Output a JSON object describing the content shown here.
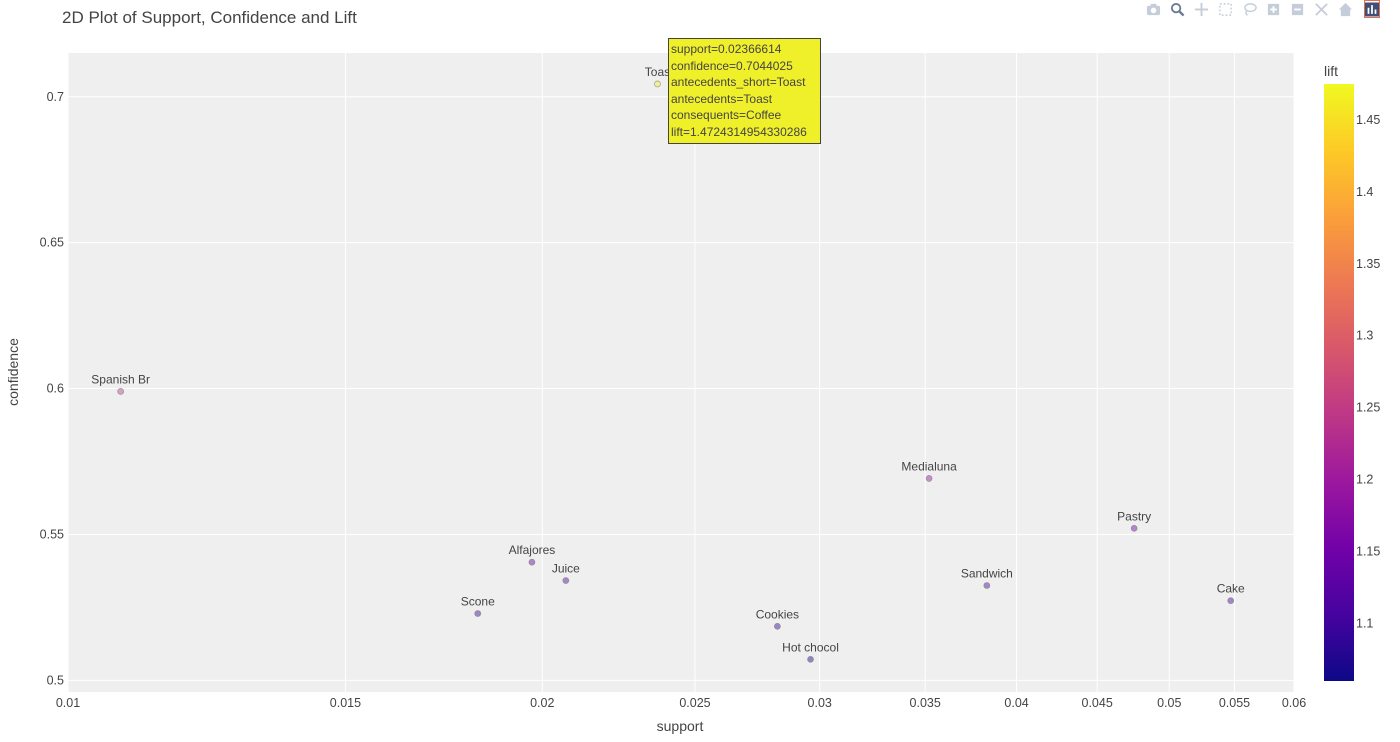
{
  "title": "2D Plot of Support, Confidence and Lift",
  "modebar": [
    "camera-icon",
    "zoom-icon",
    "pan-icon",
    "box-select-icon",
    "lasso-icon",
    "zoom-in-icon",
    "zoom-out-icon",
    "autoscale-icon",
    "home-icon",
    "plotly-logo-icon"
  ],
  "chart_data": {
    "type": "scatter",
    "title": "2D Plot of Support, Confidence and Lift",
    "xlabel": "support",
    "ylabel": "confidence",
    "xscale": "log",
    "xlim": [
      0.01,
      0.06
    ],
    "ylim": [
      0.496,
      0.715
    ],
    "xticks": [
      0.01,
      0.015,
      0.02,
      0.025,
      0.03,
      0.035,
      0.04,
      0.045,
      0.05,
      0.055,
      0.06
    ],
    "xtick_labels": [
      "0.01",
      "0.015",
      "0.02",
      "0.025",
      "0.03",
      "0.035",
      "0.04",
      "0.045",
      "0.05",
      "0.055",
      "0.06"
    ],
    "yticks": [
      0.5,
      0.55,
      0.6,
      0.65,
      0.7
    ],
    "ytick_labels": [
      "0.5",
      "0.55",
      "0.6",
      "0.65",
      "0.7"
    ],
    "grid": true,
    "colorbar": {
      "title": "lift",
      "range": [
        1.06,
        1.475
      ],
      "ticks": [
        1.1,
        1.15,
        1.2,
        1.25,
        1.3,
        1.35,
        1.4,
        1.45
      ],
      "tick_labels": [
        "1.1",
        "1.15",
        "1.2",
        "1.25",
        "1.3",
        "1.35",
        "1.4",
        "1.45"
      ],
      "colorscale": [
        "#0d0887",
        "#46039f",
        "#7201a8",
        "#9c179e",
        "#bd3786",
        "#d8576b",
        "#ed7953",
        "#fb9f3a",
        "#fdca26",
        "#f0f921"
      ]
    },
    "points": [
      {
        "label": "Toas",
        "support": 0.02366614,
        "confidence": 0.7044025,
        "lift": 1.4724314954330286
      },
      {
        "label": "Spanish Br",
        "support": 0.0108,
        "confidence": 0.599,
        "lift": 1.25
      },
      {
        "label": "Medialuna",
        "support": 0.0352,
        "confidence": 0.5692,
        "lift": 1.19
      },
      {
        "label": "Pastry",
        "support": 0.0475,
        "confidence": 0.5521,
        "lift": 1.15
      },
      {
        "label": "Alfajores",
        "support": 0.0197,
        "confidence": 0.5405,
        "lift": 1.13
      },
      {
        "label": "Juice",
        "support": 0.0207,
        "confidence": 0.5342,
        "lift": 1.12
      },
      {
        "label": "Sandwich",
        "support": 0.0383,
        "confidence": 0.5325,
        "lift": 1.11
      },
      {
        "label": "Cake",
        "support": 0.0547,
        "confidence": 0.5273,
        "lift": 1.1
      },
      {
        "label": "Scone",
        "support": 0.0182,
        "confidence": 0.5229,
        "lift": 1.1
      },
      {
        "label": "Cookies",
        "support": 0.0282,
        "confidence": 0.5185,
        "lift": 1.09
      },
      {
        "label": "Hot chocol",
        "support": 0.0296,
        "confidence": 0.5072,
        "lift": 1.07
      }
    ]
  },
  "tooltip": {
    "lines": [
      "support=0.02366614",
      "confidence=0.7044025",
      "antecedents_short=Toast",
      "antecedents=Toast",
      "consequents=Coffee",
      "lift=1.4724314954330286"
    ]
  }
}
